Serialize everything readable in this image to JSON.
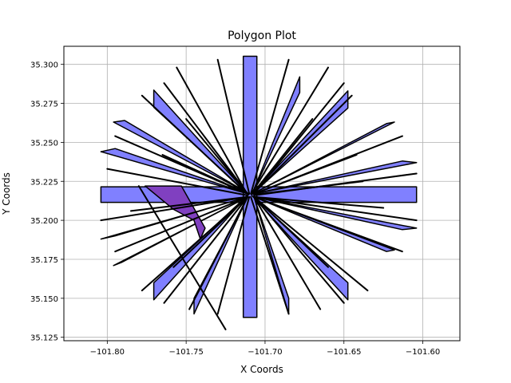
{
  "chart_data": {
    "type": "polygon",
    "title": "Polygon Plot",
    "xlabel": "X Coords",
    "ylabel": "Y Coords",
    "xlim": [
      -101.8275,
      -101.5765
    ],
    "ylim": [
      35.1228,
      35.3116
    ],
    "xticks": [
      -101.8,
      -101.75,
      -101.7,
      -101.65,
      -101.6
    ],
    "xtick_labels": [
      "−101.80",
      "−101.75",
      "−101.70",
      "−101.65",
      "−101.60"
    ],
    "yticks": [
      35.125,
      35.15,
      35.175,
      35.2,
      35.225,
      35.25,
      35.275,
      35.3
    ],
    "ytick_labels": [
      "35.125",
      "35.150",
      "35.175",
      "35.200",
      "35.225",
      "35.250",
      "35.275",
      "35.300"
    ],
    "grid": true,
    "colors": {
      "fill": "#8080ff",
      "edge": "#000000",
      "highlight_fill": "#8040c0",
      "grid": "#b0b0b0"
    },
    "series": [
      {
        "polygons": [
          [
            [
              -101.804,
              35.2115
            ],
            [
              -101.604,
              35.2115
            ],
            [
              -101.604,
              35.2215
            ],
            [
              -101.804,
              35.2215
            ]
          ],
          [
            [
              -101.7138,
              35.1378
            ],
            [
              -101.7052,
              35.1378
            ],
            [
              -101.7052,
              35.3052
            ],
            [
              -101.7138,
              35.3052
            ]
          ],
          [
            [
              -101.7705,
              35.2725
            ],
            [
              -101.7705,
              35.2835
            ],
            [
              -101.7105,
              35.2165
            ]
          ],
          [
            [
              -101.6475,
              35.16
            ],
            [
              -101.6475,
              35.149
            ],
            [
              -101.7085,
              35.216
            ]
          ],
          [
            [
              -101.7705,
              35.16
            ],
            [
              -101.7705,
              35.149
            ],
            [
              -101.7105,
              35.2165
            ]
          ],
          [
            [
              -101.6475,
              35.272
            ],
            [
              -101.6475,
              35.283
            ],
            [
              -101.7085,
              35.2165
            ]
          ],
          [
            [
              -101.796,
              35.263
            ],
            [
              -101.789,
              35.264
            ],
            [
              -101.711,
              35.2175
            ]
          ],
          [
            [
              -101.623,
              35.18
            ],
            [
              -101.618,
              35.181
            ],
            [
              -101.707,
              35.215
            ]
          ],
          [
            [
              -101.796,
              35.171
            ],
            [
              -101.791,
              35.173
            ],
            [
              -101.711,
              35.215
            ]
          ],
          [
            [
              -101.623,
              35.262
            ],
            [
              -101.618,
              35.263
            ],
            [
              -101.707,
              35.2175
            ]
          ],
          [
            [
              -101.745,
              35.14
            ],
            [
              -101.745,
              35.15
            ],
            [
              -101.711,
              35.215
            ]
          ],
          [
            [
              -101.678,
              35.292
            ],
            [
              -101.678,
              35.282
            ],
            [
              -101.708,
              35.2175
            ]
          ],
          [
            [
              -101.685,
              35.14
            ],
            [
              -101.685,
              35.15
            ],
            [
              -101.707,
              35.215
            ]
          ],
          [
            [
              -101.776,
              35.222
            ],
            [
              -101.753,
              35.222
            ],
            [
              -101.738,
              35.195
            ],
            [
              -101.741,
              35.188
            ],
            [
              -101.745,
              35.2
            ],
            [
              -101.758,
              35.207
            ]
          ],
          [
            [
              -101.804,
              35.188
            ],
            [
              -101.795,
              35.19
            ],
            [
              -101.711,
              35.215
            ]
          ],
          [
            [
              -101.604,
              35.195
            ],
            [
              -101.613,
              35.194
            ],
            [
              -101.707,
              35.215
            ]
          ],
          [
            [
              -101.604,
              35.237
            ],
            [
              -101.613,
              35.238
            ],
            [
              -101.707,
              35.217
            ]
          ],
          [
            [
              -101.804,
              35.244
            ],
            [
              -101.795,
              35.246
            ],
            [
              -101.711,
              35.217
            ]
          ]
        ],
        "lines": [
          [
            [
              -101.78,
              35.222
            ],
            [
              -101.725,
              35.13
            ]
          ],
          [
            [
              -101.73,
              35.303
            ],
            [
              -101.71,
              35.217
            ]
          ],
          [
            [
              -101.685,
              35.303
            ],
            [
              -101.709,
              35.217
            ]
          ],
          [
            [
              -101.756,
              35.298
            ],
            [
              -101.712,
              35.218
            ]
          ],
          [
            [
              -101.66,
              35.298
            ],
            [
              -101.708,
              35.218
            ]
          ],
          [
            [
              -101.778,
              35.28
            ],
            [
              -101.712,
              35.2175
            ]
          ],
          [
            [
              -101.645,
              35.28
            ],
            [
              -101.707,
              35.2175
            ]
          ],
          [
            [
              -101.764,
              35.288
            ],
            [
              -101.711,
              35.217
            ]
          ],
          [
            [
              -101.65,
              35.288
            ],
            [
              -101.707,
              35.217
            ]
          ],
          [
            [
              -101.795,
              35.254
            ],
            [
              -101.711,
              35.217
            ]
          ],
          [
            [
              -101.613,
              35.254
            ],
            [
              -101.707,
              35.217
            ]
          ],
          [
            [
              -101.8,
              35.233
            ],
            [
              -101.711,
              35.216
            ]
          ],
          [
            [
              -101.604,
              35.23
            ],
            [
              -101.707,
              35.216
            ]
          ],
          [
            [
              -101.765,
              35.242
            ],
            [
              -101.711,
              35.217
            ]
          ],
          [
            [
              -101.642,
              35.242
            ],
            [
              -101.707,
              35.217
            ]
          ],
          [
            [
              -101.804,
              35.2
            ],
            [
              -101.711,
              35.215
            ]
          ],
          [
            [
              -101.604,
              35.2
            ],
            [
              -101.707,
              35.215
            ]
          ],
          [
            [
              -101.795,
              35.18
            ],
            [
              -101.711,
              35.215
            ]
          ],
          [
            [
              -101.613,
              35.18
            ],
            [
              -101.707,
              35.215
            ]
          ],
          [
            [
              -101.778,
              35.155
            ],
            [
              -101.711,
              35.215
            ]
          ],
          [
            [
              -101.635,
              35.155
            ],
            [
              -101.707,
              35.215
            ]
          ],
          [
            [
              -101.764,
              35.147
            ],
            [
              -101.711,
              35.215
            ]
          ],
          [
            [
              -101.65,
              35.147
            ],
            [
              -101.707,
              35.215
            ]
          ],
          [
            [
              -101.748,
              35.143
            ],
            [
              -101.711,
              35.215
            ]
          ],
          [
            [
              -101.665,
              35.143
            ],
            [
              -101.707,
              35.215
            ]
          ],
          [
            [
              -101.73,
              35.14
            ],
            [
              -101.71,
              35.215
            ]
          ],
          [
            [
              -101.685,
              35.14
            ],
            [
              -101.709,
              35.215
            ]
          ],
          [
            [
              -101.66,
              35.17
            ],
            [
              -101.707,
              35.215
            ]
          ],
          [
            [
              -101.758,
              35.17
            ],
            [
              -101.711,
              35.215
            ]
          ],
          [
            [
              -101.67,
              35.265
            ],
            [
              -101.708,
              35.217
            ]
          ],
          [
            [
              -101.75,
              35.265
            ],
            [
              -101.711,
              35.217
            ]
          ],
          [
            [
              -101.638,
              35.225
            ],
            [
              -101.707,
              35.2165
            ]
          ],
          [
            [
              -101.785,
              35.206
            ],
            [
              -101.711,
              35.215
            ]
          ],
          [
            [
              -101.625,
              35.208
            ],
            [
              -101.707,
              35.215
            ]
          ]
        ]
      }
    ]
  }
}
